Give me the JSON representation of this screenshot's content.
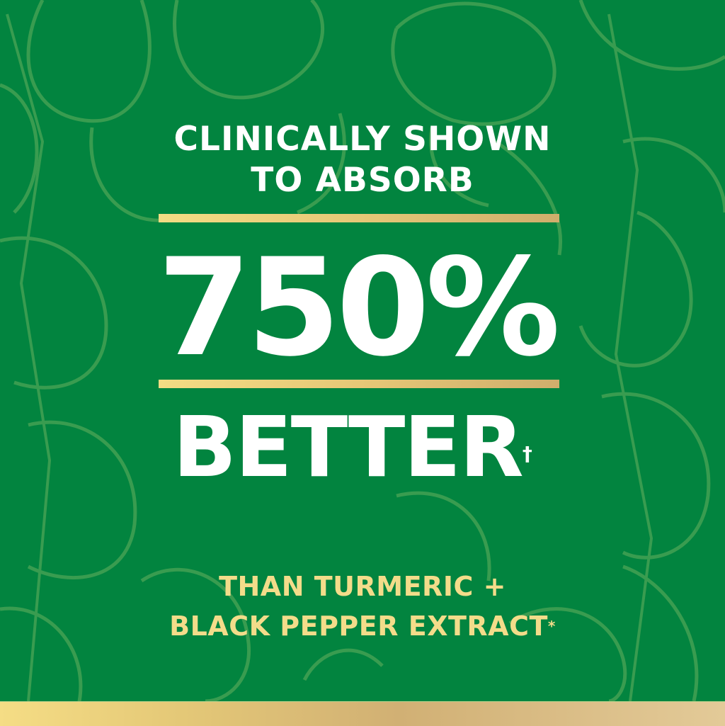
{
  "headline": {
    "line1": "CLINICALLY SHOWN",
    "line2": "TO ABSORB"
  },
  "stat": {
    "value": "750%",
    "label": "BETTER",
    "footnote_mark": "†"
  },
  "comparison": {
    "line1": "THAN TURMERIC +",
    "line2": "BLACK PEPPER EXTRACT",
    "footnote_mark": "*"
  },
  "colors": {
    "background": "#02843f",
    "pattern": "#3f9f52",
    "text": "#ffffff",
    "gold": "#f3dc8a"
  }
}
